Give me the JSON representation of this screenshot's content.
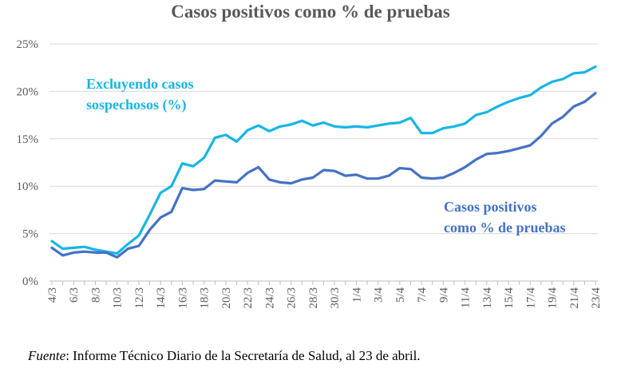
{
  "chart_data": {
    "type": "line",
    "title": "Casos positivos como % de pruebas",
    "ylim": [
      0,
      25
    ],
    "y_ticks": [
      "0%",
      "5%",
      "10%",
      "15%",
      "20%",
      "25%"
    ],
    "grid": true,
    "x": [
      "4/3",
      "5/3",
      "6/3",
      "7/3",
      "8/3",
      "9/3",
      "10/3",
      "11/3",
      "12/3",
      "13/3",
      "14/3",
      "15/3",
      "16/3",
      "17/3",
      "18/3",
      "19/3",
      "20/3",
      "21/3",
      "22/3",
      "23/3",
      "24/3",
      "25/3",
      "26/3",
      "27/3",
      "28/3",
      "29/3",
      "30/3",
      "31/3",
      "1/4",
      "2/4",
      "3/4",
      "4/4",
      "5/4",
      "6/4",
      "7/4",
      "8/4",
      "9/4",
      "10/4",
      "11/4",
      "12/4",
      "13/4",
      "14/4",
      "15/4",
      "16/4",
      "17/4",
      "18/4",
      "19/4",
      "20/4",
      "21/4",
      "22/4",
      "23/4"
    ],
    "x_tick_labels": [
      "4/3",
      "6/3",
      "8/3",
      "10/3",
      "12/3",
      "14/3",
      "16/3",
      "18/3",
      "20/3",
      "22/3",
      "24/3",
      "26/3",
      "28/3",
      "30/3",
      "1/4",
      "3/4",
      "5/4",
      "7/4",
      "9/4",
      "11/4",
      "13/4",
      "15/4",
      "17/4",
      "19/4",
      "21/4",
      "23/4"
    ],
    "series": [
      {
        "name": "Excluyendo casos sospechosos (%)",
        "color": "#17b5e6",
        "values": [
          4.2,
          3.4,
          3.5,
          3.6,
          3.3,
          3.1,
          2.9,
          3.9,
          4.8,
          7.0,
          9.3,
          10.0,
          12.4,
          12.1,
          13.0,
          15.1,
          15.4,
          14.7,
          15.9,
          16.4,
          15.8,
          16.3,
          16.5,
          16.9,
          16.4,
          16.7,
          16.3,
          16.2,
          16.3,
          16.2,
          16.4,
          16.6,
          16.7,
          17.2,
          15.6,
          15.6,
          16.1,
          16.3,
          16.6,
          17.5,
          17.8,
          18.4,
          18.9,
          19.3,
          19.6,
          20.4,
          21.0,
          21.3,
          21.9,
          22.0,
          22.6
        ]
      },
      {
        "name": "Casos positivos como % de pruebas",
        "color": "#4472c4",
        "values": [
          3.5,
          2.7,
          3.0,
          3.1,
          3.0,
          3.0,
          2.5,
          3.4,
          3.7,
          5.4,
          6.7,
          7.3,
          9.8,
          9.6,
          9.7,
          10.6,
          10.5,
          10.4,
          11.4,
          12.0,
          10.7,
          10.4,
          10.3,
          10.7,
          10.9,
          11.7,
          11.6,
          11.1,
          11.2,
          10.8,
          10.8,
          11.1,
          11.9,
          11.8,
          10.9,
          10.8,
          10.9,
          11.4,
          12.0,
          12.8,
          13.4,
          13.5,
          13.7,
          14.0,
          14.3,
          15.3,
          16.6,
          17.3,
          18.4,
          18.9,
          19.8
        ]
      }
    ],
    "annotations": [
      {
        "lines": [
          "Excluyendo casos",
          "sospechosos (%)"
        ],
        "series": 0
      },
      {
        "lines": [
          "Casos positivos",
          "como % de pruebas"
        ],
        "series": 1
      }
    ]
  },
  "footer": {
    "source_label": "Fuente",
    "source_text": ": Informe Técnico Diario de la Secretaría de Salud, al 23 de abril."
  }
}
